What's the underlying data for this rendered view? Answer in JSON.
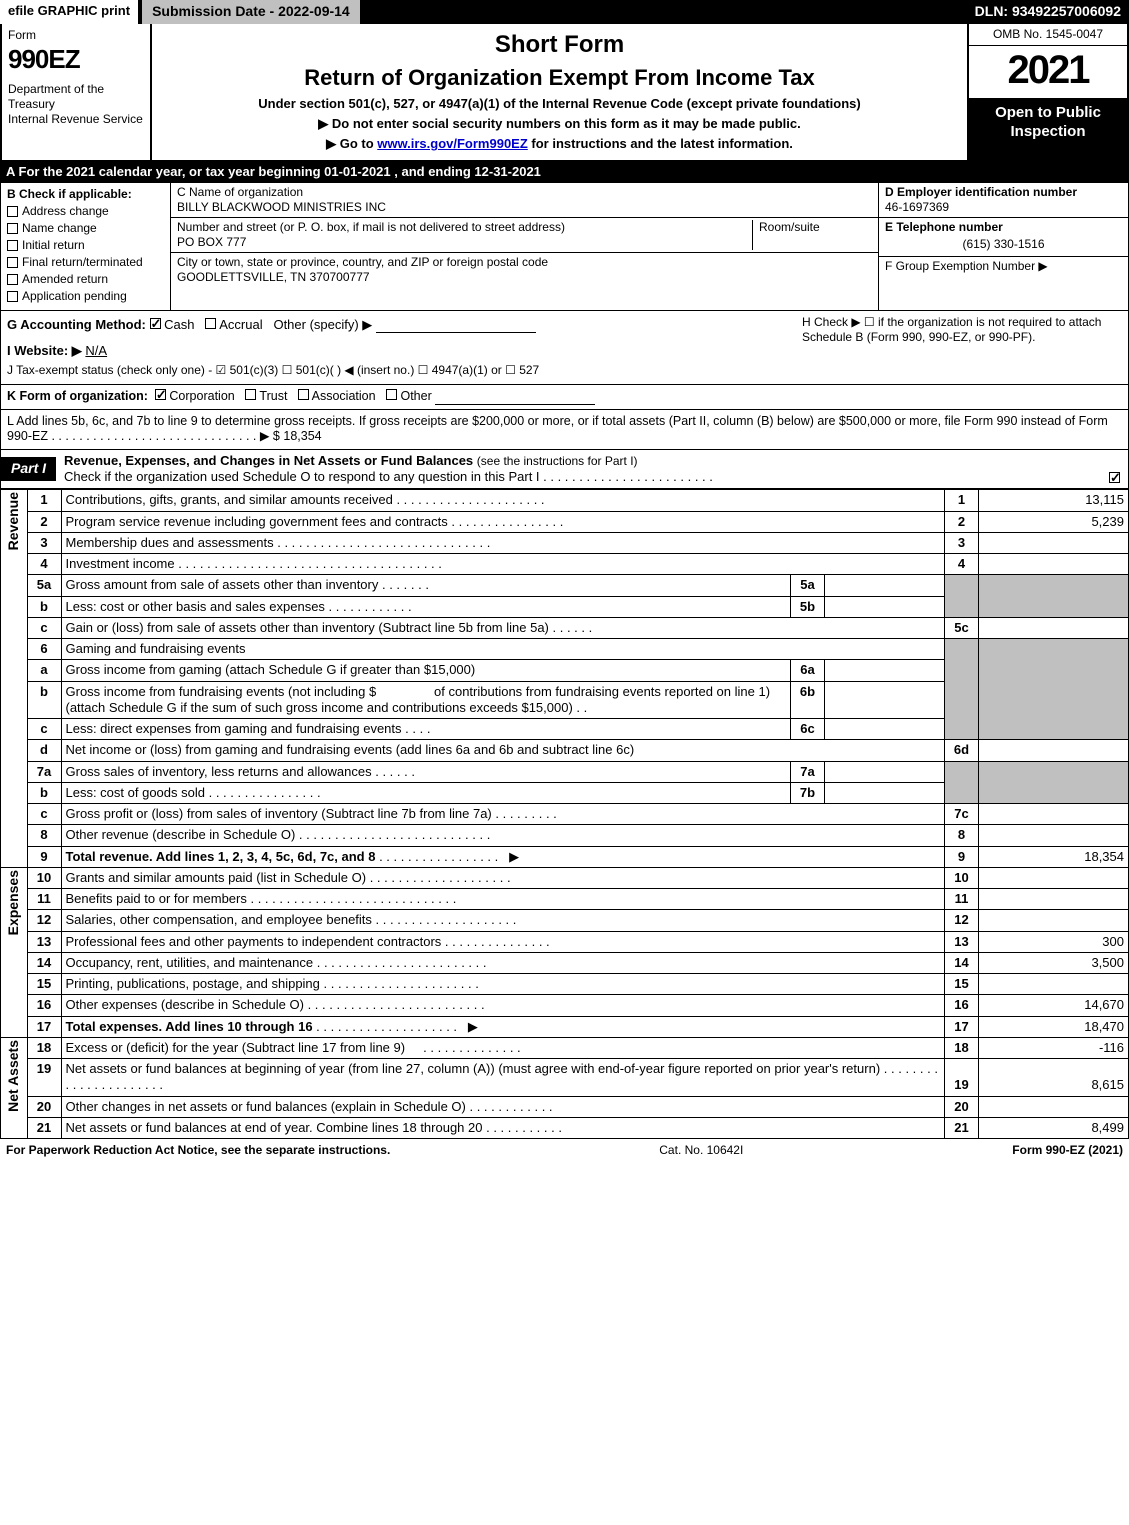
{
  "topbar": {
    "efile_print": "efile GRAPHIC print",
    "submission": "Submission Date - 2022-09-14",
    "dln": "DLN: 93492257006092"
  },
  "header": {
    "form_label": "Form",
    "form_number": "990EZ",
    "dept": "Department of the Treasury\nInternal Revenue Service",
    "short_form": "Short Form",
    "title": "Return of Organization Exempt From Income Tax",
    "subtitle": "Under section 501(c), 527, or 4947(a)(1) of the Internal Revenue Code (except private foundations)",
    "note1": "▶ Do not enter social security numbers on this form as it may be made public.",
    "note2_pre": "▶ Go to ",
    "note2_link": "www.irs.gov/Form990EZ",
    "note2_post": " for instructions and the latest information.",
    "omb": "OMB No. 1545-0047",
    "year": "2021",
    "open_public": "Open to Public Inspection"
  },
  "row_a": "A  For the 2021 calendar year, or tax year beginning 01-01-2021 , and ending 12-31-2021",
  "section_b": {
    "label": "B  Check if applicable:",
    "items": [
      {
        "label": "Address change",
        "checked": false
      },
      {
        "label": "Name change",
        "checked": false
      },
      {
        "label": "Initial return",
        "checked": false
      },
      {
        "label": "Final return/terminated",
        "checked": false
      },
      {
        "label": "Amended return",
        "checked": false
      },
      {
        "label": "Application pending",
        "checked": false
      }
    ]
  },
  "section_c": {
    "name_label": "C Name of organization",
    "name": "BILLY BLACKWOOD MINISTRIES INC",
    "street_label": "Number and street (or P. O. box, if mail is not delivered to street address)",
    "street": "PO BOX 777",
    "room_label": "Room/suite",
    "city_label": "City or town, state or province, country, and ZIP or foreign postal code",
    "city": "GOODLETTSVILLE, TN  370700777"
  },
  "section_d": {
    "label": "D Employer identification number",
    "value": "46-1697369"
  },
  "section_e": {
    "label": "E Telephone number",
    "value": "(615) 330-1516"
  },
  "section_f": {
    "label": "F Group Exemption Number  ▶"
  },
  "row_g": {
    "label": "G Accounting Method:",
    "cash_checked": true,
    "cash": "Cash",
    "accrual": "Accrual",
    "other": "Other (specify) ▶"
  },
  "row_h": "H  Check ▶ ☐ if the organization is not required to attach Schedule B (Form 990, 990-EZ, or 990-PF).",
  "row_i": {
    "label": "I Website: ▶",
    "value": "N/A"
  },
  "row_j": "J Tax-exempt status (check only one) - ☑ 501(c)(3) ☐ 501(c)(  ) ◀ (insert no.) ☐ 4947(a)(1) or ☐ 527",
  "row_k": {
    "label": "K Form of organization:",
    "corp_checked": true,
    "corp": "Corporation",
    "trust": "Trust",
    "assoc": "Association",
    "other": "Other"
  },
  "row_l": {
    "text": "L Add lines 5b, 6c, and 7b to line 9 to determine gross receipts. If gross receipts are $200,000 or more, or if total assets (Part II, column (B) below) are $500,000 or more, file Form 990 instead of Form 990-EZ . . . . . . . . . . . . . . . . . . . . . . . . . . . . . . ▶ $",
    "value": "18,354"
  },
  "part1": {
    "label": "Part I",
    "title": "Revenue, Expenses, and Changes in Net Assets or Fund Balances",
    "sub": "(see the instructions for Part I)",
    "schedule_o": "Check if the organization used Schedule O to respond to any question in this Part I . . . . . . . . . . . . . . . . . . . . . . . .",
    "schedule_o_checked": true
  },
  "side_labels": {
    "revenue": "Revenue",
    "expenses": "Expenses",
    "netassets": "Net Assets"
  },
  "lines": {
    "l1": {
      "no": "1",
      "desc": "Contributions, gifts, grants, and similar amounts received",
      "num": "1",
      "amt": "13,115"
    },
    "l2": {
      "no": "2",
      "desc": "Program service revenue including government fees and contracts",
      "num": "2",
      "amt": "5,239"
    },
    "l3": {
      "no": "3",
      "desc": "Membership dues and assessments",
      "num": "3",
      "amt": ""
    },
    "l4": {
      "no": "4",
      "desc": "Investment income",
      "num": "4",
      "amt": ""
    },
    "l5a": {
      "no": "5a",
      "desc": "Gross amount from sale of assets other than inventory",
      "sub": "5a"
    },
    "l5b": {
      "no": "b",
      "desc": "Less: cost or other basis and sales expenses",
      "sub": "5b"
    },
    "l5c": {
      "no": "c",
      "desc": "Gain or (loss) from sale of assets other than inventory (Subtract line 5b from line 5a)",
      "num": "5c",
      "amt": ""
    },
    "l6": {
      "no": "6",
      "desc": "Gaming and fundraising events"
    },
    "l6a": {
      "no": "a",
      "desc": "Gross income from gaming (attach Schedule G if greater than $15,000)",
      "sub": "6a"
    },
    "l6b": {
      "no": "b",
      "desc1": "Gross income from fundraising events (not including $",
      "desc2": "of contributions from fundraising events reported on line 1) (attach Schedule G if the sum of such gross income and contributions exceeds $15,000)",
      "sub": "6b"
    },
    "l6c": {
      "no": "c",
      "desc": "Less: direct expenses from gaming and fundraising events",
      "sub": "6c"
    },
    "l6d": {
      "no": "d",
      "desc": "Net income or (loss) from gaming and fundraising events (add lines 6a and 6b and subtract line 6c)",
      "num": "6d",
      "amt": ""
    },
    "l7a": {
      "no": "7a",
      "desc": "Gross sales of inventory, less returns and allowances",
      "sub": "7a"
    },
    "l7b": {
      "no": "b",
      "desc": "Less: cost of goods sold",
      "sub": "7b"
    },
    "l7c": {
      "no": "c",
      "desc": "Gross profit or (loss) from sales of inventory (Subtract line 7b from line 7a)",
      "num": "7c",
      "amt": ""
    },
    "l8": {
      "no": "8",
      "desc": "Other revenue (describe in Schedule O)",
      "num": "8",
      "amt": ""
    },
    "l9": {
      "no": "9",
      "desc": "Total revenue. Add lines 1, 2, 3, 4, 5c, 6d, 7c, and 8",
      "num": "9",
      "amt": "18,354",
      "bold": true
    },
    "l10": {
      "no": "10",
      "desc": "Grants and similar amounts paid (list in Schedule O)",
      "num": "10",
      "amt": ""
    },
    "l11": {
      "no": "11",
      "desc": "Benefits paid to or for members",
      "num": "11",
      "amt": ""
    },
    "l12": {
      "no": "12",
      "desc": "Salaries, other compensation, and employee benefits",
      "num": "12",
      "amt": ""
    },
    "l13": {
      "no": "13",
      "desc": "Professional fees and other payments to independent contractors",
      "num": "13",
      "amt": "300"
    },
    "l14": {
      "no": "14",
      "desc": "Occupancy, rent, utilities, and maintenance",
      "num": "14",
      "amt": "3,500"
    },
    "l15": {
      "no": "15",
      "desc": "Printing, publications, postage, and shipping",
      "num": "15",
      "amt": ""
    },
    "l16": {
      "no": "16",
      "desc": "Other expenses (describe in Schedule O)",
      "num": "16",
      "amt": "14,670"
    },
    "l17": {
      "no": "17",
      "desc": "Total expenses. Add lines 10 through 16",
      "num": "17",
      "amt": "18,470",
      "bold": true
    },
    "l18": {
      "no": "18",
      "desc": "Excess or (deficit) for the year (Subtract line 17 from line 9)",
      "num": "18",
      "amt": "-116"
    },
    "l19": {
      "no": "19",
      "desc": "Net assets or fund balances at beginning of year (from line 27, column (A)) (must agree with end-of-year figure reported on prior year's return)",
      "num": "19",
      "amt": "8,615"
    },
    "l20": {
      "no": "20",
      "desc": "Other changes in net assets or fund balances (explain in Schedule O)",
      "num": "20",
      "amt": ""
    },
    "l21": {
      "no": "21",
      "desc": "Net assets or fund balances at end of year. Combine lines 18 through 20",
      "num": "21",
      "amt": "8,499"
    }
  },
  "footer": {
    "left": "For Paperwork Reduction Act Notice, see the separate instructions.",
    "mid": "Cat. No. 10642I",
    "right": "Form 990-EZ (2021)"
  },
  "colors": {
    "black": "#000000",
    "white": "#ffffff",
    "gray": "#c0c0c0",
    "link": "#0000cc"
  }
}
